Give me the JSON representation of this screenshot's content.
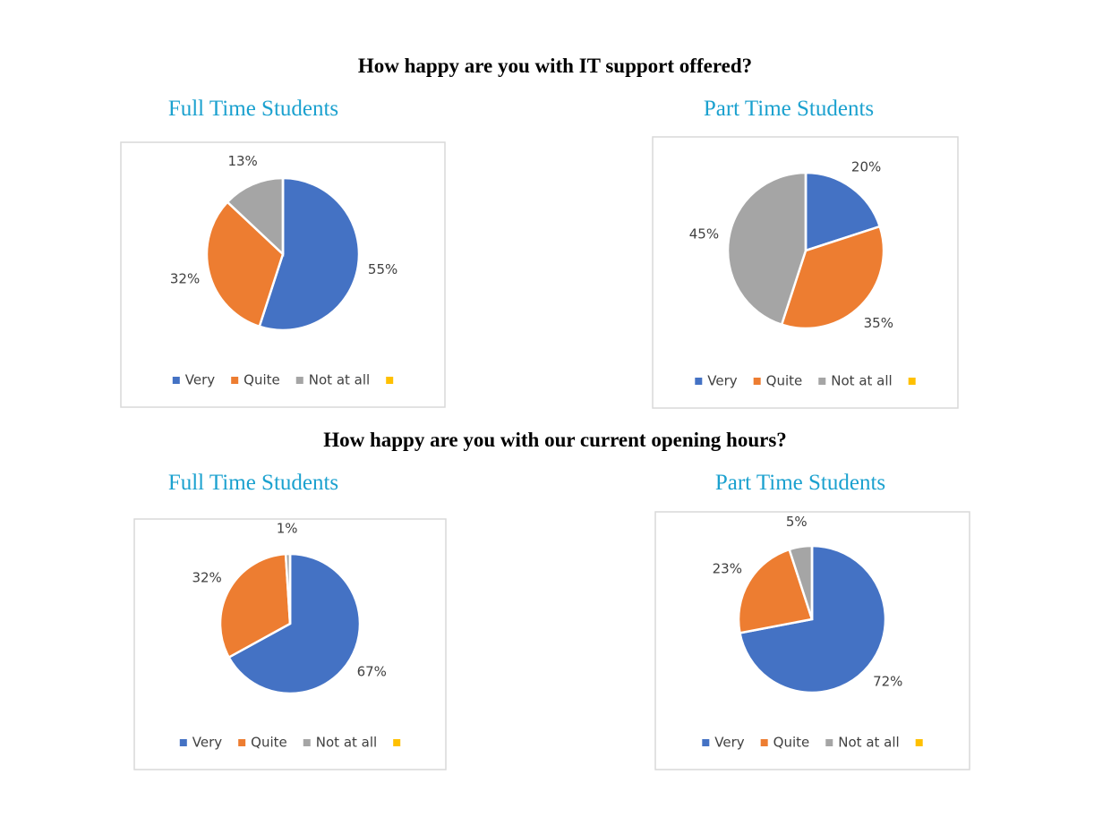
{
  "headings": [
    "How happy are you with IT support offered?",
    "How happy are you with our current opening hours?"
  ],
  "chart_data": [
    {
      "type": "pie",
      "title": "Full Time Students",
      "categories": [
        "Very",
        "Quite",
        "Not at all",
        null
      ],
      "values": [
        55,
        32,
        13,
        0
      ],
      "value_labels": [
        "55%",
        "32%",
        "13%",
        null
      ],
      "colors": [
        "#4472c4",
        "#ed7d31",
        "#a5a5a5",
        "#ffc000"
      ]
    },
    {
      "type": "pie",
      "title": "Part Time Students",
      "categories": [
        "Very",
        "Quite",
        "Not at all",
        null
      ],
      "values": [
        20,
        35,
        45,
        0
      ],
      "value_labels": [
        "20%",
        "35%",
        "45%",
        null
      ],
      "colors": [
        "#4472c4",
        "#ed7d31",
        "#a5a5a5",
        "#ffc000"
      ]
    },
    {
      "type": "pie",
      "title": "Full Time Students",
      "categories": [
        "Very",
        "Quite",
        "Not at all",
        null
      ],
      "values": [
        67,
        32,
        1,
        0
      ],
      "value_labels": [
        "67%",
        "32%",
        "1%",
        null
      ],
      "colors": [
        "#4472c4",
        "#ed7d31",
        "#a5a5a5",
        "#ffc000"
      ]
    },
    {
      "type": "pie",
      "title": "Part Time Students",
      "categories": [
        "Very",
        "Quite",
        "Not at all",
        null
      ],
      "values": [
        72,
        23,
        5,
        0
      ],
      "value_labels": [
        "72%",
        "23%",
        "5%",
        null
      ],
      "colors": [
        "#4472c4",
        "#ed7d31",
        "#a5a5a5",
        "#ffc000"
      ]
    }
  ]
}
